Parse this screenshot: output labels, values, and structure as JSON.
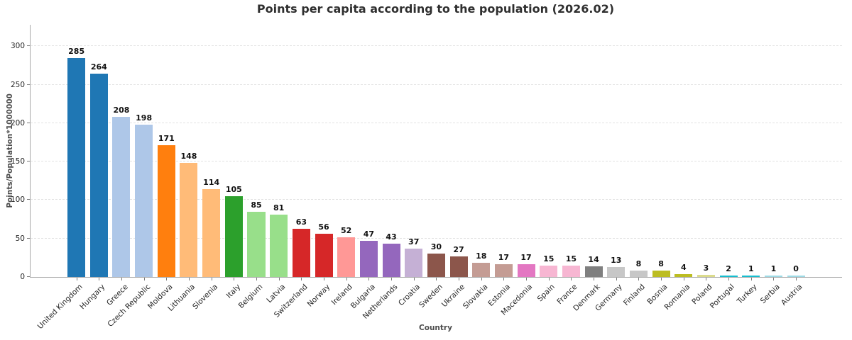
{
  "chart_data": {
    "type": "bar",
    "title": "Points per capita according to the population (2026.02)",
    "xlabel": "Country",
    "ylabel": "Points/Population*1000000",
    "ylim": [
      0,
      328
    ],
    "yticks": [
      0,
      50,
      100,
      150,
      200,
      250,
      300
    ],
    "grid": "horizontal dashed",
    "legend": "none",
    "bar_value_labels": true,
    "palette": "tab20",
    "categories": [
      "United Kingdom",
      "Hungary",
      "Greece",
      "Czech Republic",
      "Moldova",
      "Lithuania",
      "Slovenia",
      "Italy",
      "Belgium",
      "Latvia",
      "Switzerland",
      "Norway",
      "Ireland",
      "Bulgaria",
      "Netherlands",
      "Croatia",
      "Sweden",
      "Ukraine",
      "Slovakia",
      "Estonia",
      "Macedonia",
      "Spain",
      "France",
      "Denmark",
      "Germany",
      "Finland",
      "Bosnia",
      "Romania",
      "Poland",
      "Portugal",
      "Turkey",
      "Serbia",
      "Austria"
    ],
    "values": [
      285,
      264,
      208,
      198,
      171,
      148,
      114,
      105,
      85,
      81,
      63,
      56,
      52,
      47,
      43,
      37,
      30,
      27,
      18,
      17,
      17,
      15,
      15,
      14,
      13,
      8,
      8,
      4,
      3,
      2,
      1,
      1,
      0
    ],
    "bar_colors": [
      "#1f77b4",
      "#1f77b4",
      "#aec7e8",
      "#aec7e8",
      "#ff7f0e",
      "#ffbb78",
      "#ffbb78",
      "#2ca02c",
      "#98df8a",
      "#98df8a",
      "#d62728",
      "#d62728",
      "#ff9896",
      "#9467bd",
      "#9467bd",
      "#c5b0d5",
      "#8c564b",
      "#8c564b",
      "#c49c94",
      "#c49c94",
      "#e377c2",
      "#f7b6d2",
      "#f7b6d2",
      "#7f7f7f",
      "#c7c7c7",
      "#c7c7c7",
      "#bcbd22",
      "#bcbd22",
      "#dbdb8d",
      "#17becf",
      "#17becf",
      "#9edae5",
      "#9edae5"
    ]
  },
  "style": {
    "background": "#ffffff",
    "grid_color": "#e2e2e2",
    "spine_color": "#a9a9a9",
    "tick_mark_color": "#7a7a7a",
    "tick_label_color": "#262626",
    "value_label_color": "#111111",
    "axis_label_color": "#4d4d4d",
    "title_color": "#2f2f2f"
  }
}
